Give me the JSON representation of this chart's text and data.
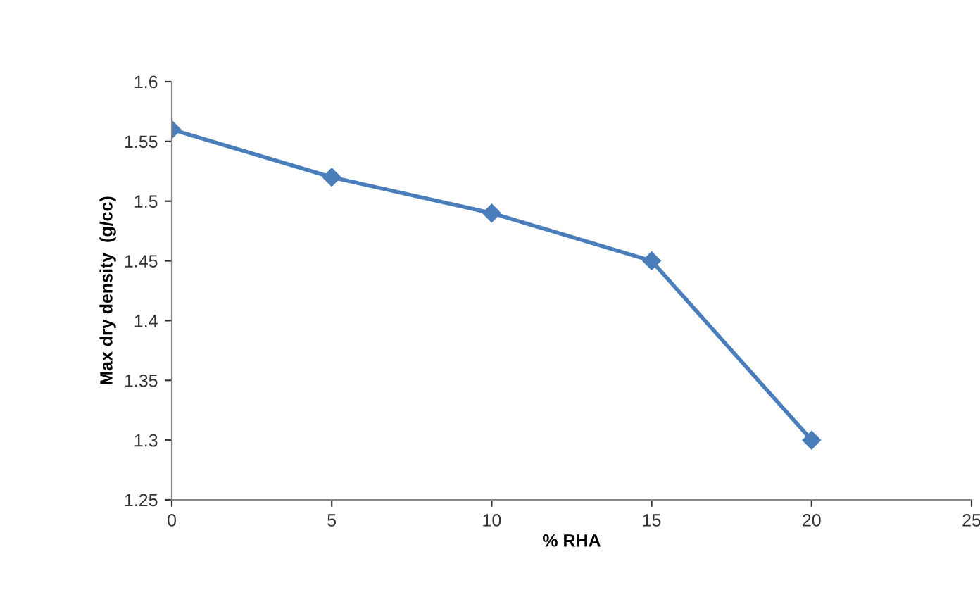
{
  "chart_data": {
    "type": "line",
    "xlabel": "% RHA",
    "ylabel": "Max dry density  (g/cc)",
    "x": [
      0,
      5,
      10,
      15,
      20
    ],
    "series": [
      {
        "color": "#4a7ebb",
        "values": [
          1.56,
          1.52,
          1.49,
          1.45,
          1.3
        ]
      }
    ],
    "xlim": [
      0,
      25
    ],
    "xticks": [
      0,
      5,
      10,
      15,
      20,
      25
    ],
    "ylim": [
      1.25,
      1.6
    ],
    "yticks": [
      1.25,
      1.3,
      1.35,
      1.4,
      1.45,
      1.5,
      1.55,
      1.6
    ],
    "marker": "diamond",
    "line_style": "solid",
    "grid": false,
    "legend": false
  }
}
